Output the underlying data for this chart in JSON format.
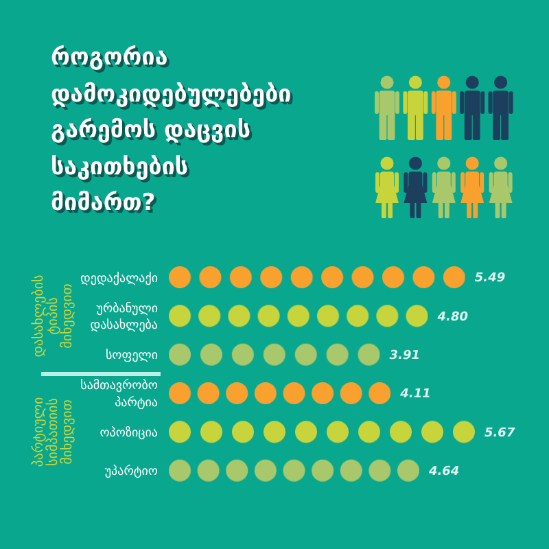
{
  "chart_data": {
    "type": "bar",
    "orientation": "horizontal",
    "title": "როგორია დამოკიდებულებები გარემოს დაცვის საკითხების მიმართ?",
    "categories": [
      "დედაქალაქი",
      "ურბანული დასახლება",
      "სოფელი",
      "სამთავრობო პარტია",
      "ოპოზიცია",
      "უპარტიო"
    ],
    "values": [
      5.49,
      4.8,
      3.91,
      4.11,
      5.67,
      4.64
    ],
    "value_labels": [
      "5.49",
      "4.80",
      "3.91",
      "4.11",
      "5.67",
      "4.64"
    ],
    "colors": [
      "#f9a12e",
      "#c8d43c",
      "#a8c86b",
      "#f9a12e",
      "#c8d43c",
      "#a8c86b"
    ],
    "annotations": [
      "დასახლების ტიპის მიხედვით",
      "პარტიული სიმპათიის მიხედვით"
    ],
    "tick_labels": "y"
  }
}
